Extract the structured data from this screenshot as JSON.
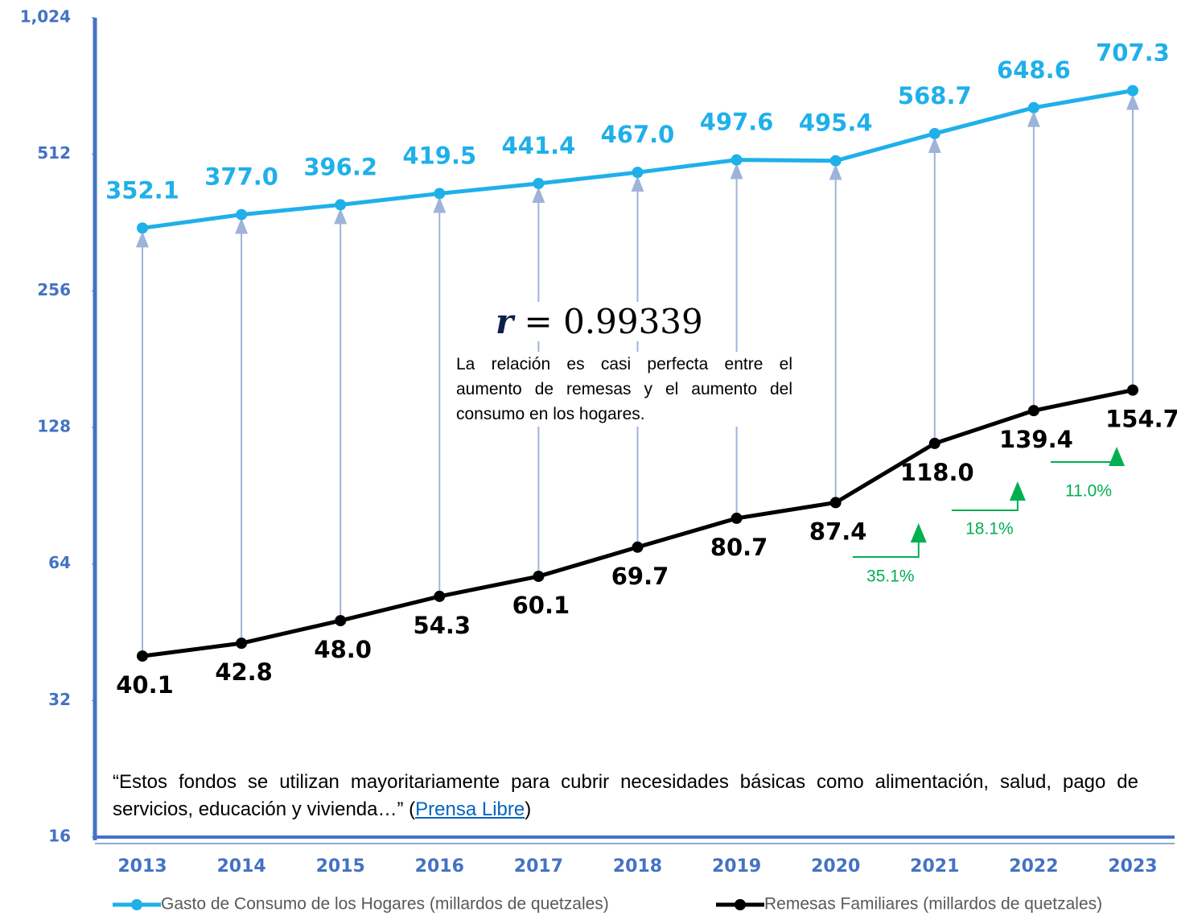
{
  "chart_data": {
    "type": "line",
    "categories": [
      "2013",
      "2014",
      "2015",
      "2016",
      "2017",
      "2018",
      "2019",
      "2020",
      "2021",
      "2022",
      "2023"
    ],
    "series": [
      {
        "name": "Gasto de Consumo de los Hogares (millardos de quetzales)",
        "color": "#1fb0ea",
        "values": [
          352.1,
          377.0,
          396.2,
          419.5,
          441.4,
          467.0,
          497.6,
          495.4,
          568.7,
          648.6,
          707.3
        ],
        "value_labels": [
          "352.1",
          "377.0",
          "396.2",
          "419.5",
          "441.4",
          "467.0",
          "497.6",
          "495.4",
          "568.7",
          "648.6",
          "707.3"
        ]
      },
      {
        "name": "Remesas Familiares (millardos de quetzales)",
        "color": "#000000",
        "values": [
          40.1,
          42.8,
          48.0,
          54.3,
          60.1,
          69.7,
          80.7,
          87.4,
          118.0,
          139.4,
          154.7
        ],
        "value_labels": [
          "40.1",
          "42.8",
          "48.0",
          "54.3",
          "60.1",
          "69.7",
          "80.7",
          "87.4",
          "118.0",
          "139.4",
          "154.7"
        ]
      }
    ],
    "ylim": [
      16,
      1024
    ],
    "log_scale": true,
    "yticks": [
      16,
      32,
      64,
      128,
      256,
      512,
      {
        "value": 1024,
        "label": "1,024"
      }
    ],
    "axis_color": "#4472c4",
    "legend": "bottom",
    "correlation": {
      "symbol": "r",
      "operator": "=",
      "value": "0.99339"
    },
    "note": "La relación es casi perfecta entre el aumento de remesas y el aumento del consumo en los hogares.",
    "quote": "“Estos fondos se utilizan mayoritariamente para cubrir necesidades básicas como alimentación, salud, pago de servicios, educación y vivienda…” (",
    "source": "Prensa Libre",
    "quote_end": ")",
    "growth": {
      "color": "#00b050",
      "values": [
        35.1,
        18.1,
        11.0
      ],
      "value_labels": [
        "35.1%",
        "18.1%",
        "11.0%"
      ]
    }
  }
}
